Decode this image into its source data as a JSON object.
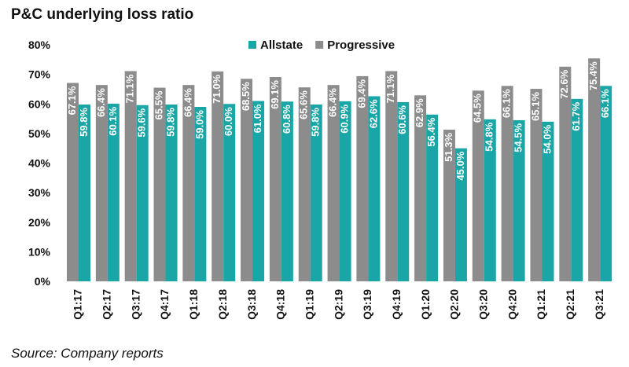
{
  "title": "P&C underlying loss ratio",
  "source": "Source: Company reports",
  "chart_data": {
    "type": "bar",
    "title": "P&C underlying loss ratio",
    "xlabel": "",
    "ylabel": "",
    "ylim": [
      0,
      80
    ],
    "yticks": [
      "0%",
      "10%",
      "20%",
      "30%",
      "40%",
      "50%",
      "60%",
      "70%",
      "80%"
    ],
    "grid": false,
    "legend_position": "top-center",
    "categories": [
      "Q1:17",
      "Q2:17",
      "Q3:17",
      "Q4:17",
      "Q1:18",
      "Q2:18",
      "Q3:18",
      "Q4:18",
      "Q1:19",
      "Q2:19",
      "Q3:19",
      "Q4:19",
      "Q1:20",
      "Q2:20",
      "Q3:20",
      "Q4:20",
      "Q1:21",
      "Q2:21",
      "Q3:21"
    ],
    "series": [
      {
        "name": "Progressive",
        "color": "#8c8c8c",
        "values": [
          67.1,
          66.4,
          71.1,
          65.5,
          66.4,
          71.0,
          68.5,
          69.1,
          65.6,
          66.4,
          69.4,
          71.1,
          62.9,
          51.3,
          64.5,
          66.1,
          65.1,
          72.6,
          75.4
        ],
        "labels": [
          "67.1%",
          "66.4%",
          "71.1%",
          "65.5%",
          "66.4%",
          "71.0%",
          "68.5%",
          "69.1%",
          "65.6%",
          "66.4%",
          "69.4%",
          "71.1%",
          "62.9%",
          "51.3%",
          "64.5%",
          "66.1%",
          "65.1%",
          "72.6%",
          "75.4%"
        ]
      },
      {
        "name": "Allstate",
        "color": "#1aa6a6",
        "values": [
          59.8,
          60.1,
          59.6,
          59.8,
          59.0,
          60.0,
          61.0,
          60.8,
          59.8,
          60.9,
          62.6,
          60.6,
          56.4,
          45.0,
          54.8,
          54.5,
          54.0,
          61.7,
          66.1
        ],
        "labels": [
          "59.8%",
          "60.1%",
          "59.6%",
          "59.8%",
          "59.0%",
          "60.0%",
          "61.0%",
          "60.8%",
          "59.8%",
          "60.9%",
          "62.6%",
          "60.6%",
          "56.4%",
          "45.0%",
          "54.8%",
          "54.5%",
          "54.0%",
          "61.7%",
          "66.1%"
        ]
      }
    ],
    "legend_order": [
      "Allstate",
      "Progressive"
    ]
  }
}
